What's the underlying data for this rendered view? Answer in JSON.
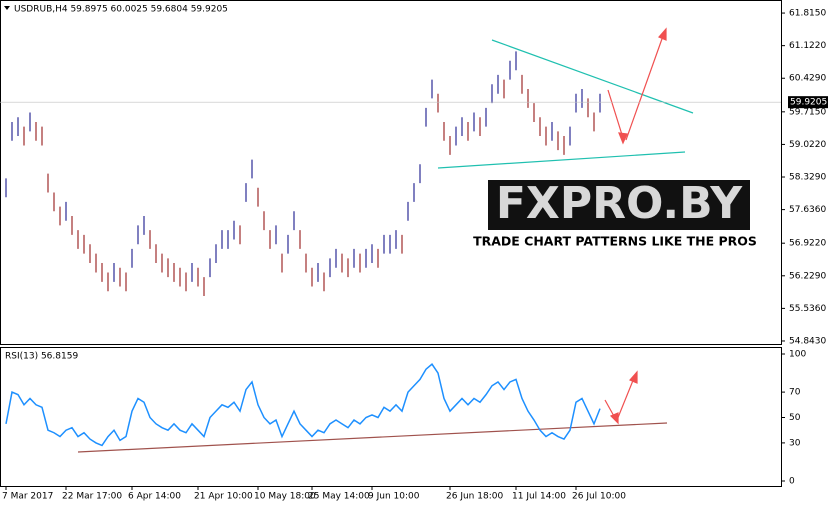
{
  "chart_data": [
    {
      "type": "range",
      "title": "USDRUB,H4 59.8975 60.0025 59.6804 59.9205",
      "up_color": "#000080",
      "down_color": "#8b0000",
      "categories": [
        "7 Mar 2017",
        null,
        null,
        null,
        null,
        null,
        null,
        null,
        null,
        null,
        "22 Mar 17:00",
        null,
        null,
        null,
        null,
        null,
        null,
        null,
        null,
        null,
        null,
        "6 Apr 14:00",
        null,
        null,
        null,
        null,
        null,
        null,
        null,
        null,
        null,
        null,
        "21 Apr 10:00",
        null,
        null,
        null,
        null,
        null,
        null,
        null,
        null,
        null,
        "10 May 18:00",
        null,
        null,
        null,
        null,
        null,
        null,
        null,
        null,
        "25 May 14:00",
        null,
        null,
        null,
        null,
        null,
        null,
        null,
        null,
        null,
        "9 Jun 10:00",
        null,
        null,
        null,
        null,
        null,
        null,
        null,
        null,
        null,
        null,
        null,
        null,
        "26 Jun 18:00",
        null,
        null,
        null,
        null,
        null,
        null,
        null,
        null,
        null,
        null,
        "11 Jul 14:00",
        null,
        null,
        null,
        null,
        null,
        null,
        null,
        null,
        null,
        "26 Jul 10:00",
        null,
        null,
        null,
        null
      ],
      "high": [
        58.3,
        59.5,
        59.6,
        59.4,
        59.7,
        59.5,
        59.4,
        58.4,
        58.0,
        57.7,
        57.8,
        57.5,
        57.2,
        57.1,
        56.9,
        56.7,
        56.5,
        56.3,
        56.5,
        56.4,
        56.3,
        56.8,
        57.3,
        57.5,
        57.2,
        56.9,
        56.7,
        56.6,
        56.5,
        56.4,
        56.3,
        56.5,
        56.4,
        56.2,
        56.6,
        56.9,
        57.2,
        57.2,
        57.4,
        57.3,
        58.2,
        58.7,
        58.1,
        57.6,
        57.2,
        57.3,
        56.7,
        57.1,
        57.6,
        57.2,
        56.7,
        56.4,
        56.5,
        56.3,
        56.6,
        56.8,
        56.7,
        56.6,
        56.8,
        56.7,
        56.8,
        56.9,
        56.8,
        57.1,
        57.1,
        57.2,
        57.1,
        57.8,
        58.2,
        58.6,
        59.8,
        60.4,
        60.1,
        59.5,
        59.2,
        59.4,
        59.6,
        59.5,
        59.7,
        59.6,
        59.8,
        60.3,
        60.5,
        60.4,
        60.8,
        61.0,
        60.5,
        60.2,
        59.9,
        59.6,
        59.4,
        59.5,
        59.3,
        59.2,
        59.4,
        60.1,
        60.2,
        60.0,
        59.7,
        60.1
      ],
      "low": [
        57.9,
        59.1,
        59.2,
        59.0,
        59.3,
        59.1,
        59.0,
        58.0,
        57.6,
        57.3,
        57.4,
        57.1,
        56.8,
        56.7,
        56.5,
        56.3,
        56.1,
        55.9,
        56.1,
        56.0,
        55.9,
        56.4,
        56.9,
        57.1,
        56.8,
        56.5,
        56.3,
        56.2,
        56.1,
        56.0,
        55.9,
        56.1,
        56.0,
        55.8,
        56.2,
        56.5,
        56.8,
        56.8,
        57.0,
        56.9,
        57.8,
        58.3,
        57.7,
        57.2,
        56.8,
        56.9,
        56.3,
        56.7,
        57.2,
        56.8,
        56.3,
        56.0,
        56.1,
        55.9,
        56.2,
        56.4,
        56.3,
        56.2,
        56.4,
        56.3,
        56.4,
        56.5,
        56.4,
        56.7,
        56.7,
        56.8,
        56.7,
        57.4,
        57.8,
        58.2,
        59.4,
        60.0,
        59.7,
        59.1,
        58.8,
        59.0,
        59.2,
        59.1,
        59.3,
        59.2,
        59.4,
        59.9,
        60.1,
        60.0,
        60.4,
        60.6,
        60.1,
        59.8,
        59.5,
        59.2,
        59.0,
        59.1,
        58.9,
        58.8,
        59.0,
        59.7,
        59.8,
        59.6,
        59.3,
        59.7
      ],
      "ylim": [
        54.8,
        62.05
      ],
      "yticks": [
        {
          "value": 61.815,
          "label": "61.8150"
        },
        {
          "value": 61.122,
          "label": "61.1220"
        },
        {
          "value": 60.429,
          "label": "60.4290"
        },
        {
          "value": 59.715,
          "label": "59.7150"
        },
        {
          "value": 59.022,
          "label": "59.0220"
        },
        {
          "value": 58.329,
          "label": "58.3290"
        },
        {
          "value": 57.636,
          "label": "57.6360"
        },
        {
          "value": 56.922,
          "label": "56.9220"
        },
        {
          "value": 56.229,
          "label": "56.2290"
        },
        {
          "value": 55.536,
          "label": "55.5360"
        },
        {
          "value": 54.843,
          "label": "54.8430"
        }
      ],
      "current_price": {
        "value": 59.9205,
        "label": "59.9205"
      }
    },
    {
      "type": "line",
      "title": "RSI(13) 56.8159",
      "color": "#1e90ff",
      "values": [
        45,
        70,
        68,
        60,
        65,
        60,
        58,
        40,
        38,
        35,
        40,
        42,
        35,
        38,
        33,
        30,
        28,
        35,
        40,
        32,
        35,
        55,
        65,
        62,
        50,
        45,
        42,
        40,
        45,
        40,
        38,
        45,
        40,
        35,
        50,
        55,
        60,
        58,
        62,
        55,
        72,
        78,
        60,
        50,
        45,
        48,
        35,
        45,
        55,
        45,
        40,
        35,
        40,
        38,
        45,
        48,
        45,
        42,
        48,
        45,
        50,
        52,
        50,
        58,
        55,
        60,
        55,
        70,
        75,
        80,
        88,
        92,
        85,
        65,
        55,
        60,
        65,
        60,
        65,
        62,
        68,
        75,
        78,
        72,
        78,
        80,
        65,
        55,
        48,
        40,
        35,
        38,
        35,
        33,
        40,
        62,
        65,
        55,
        45,
        57
      ],
      "ylim": [
        0,
        100
      ],
      "yticks": [
        100,
        70,
        50,
        30,
        0
      ]
    }
  ],
  "watermark": {
    "title": "FXPRO.BY",
    "subtitle": "TRADE CHART PATTERNS LIKE THE PROS"
  }
}
